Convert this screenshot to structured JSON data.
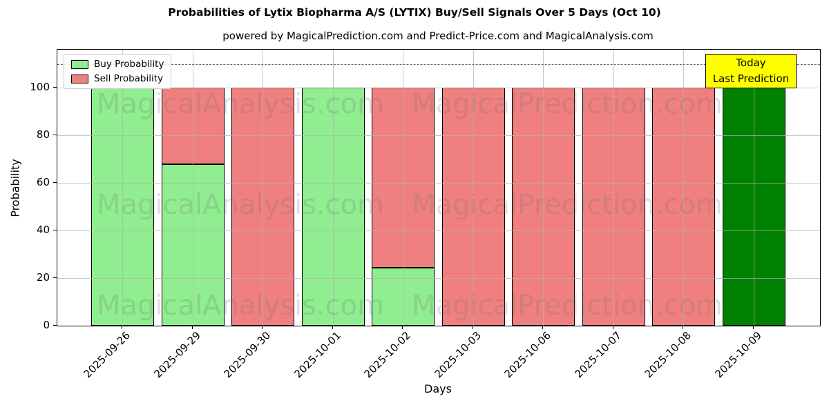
{
  "subtitle": "powered by MagicalPrediction.com and Predict-Price.com and MagicalAnalysis.com",
  "annotation": {
    "line1": "Today",
    "line2": "Last Prediction",
    "bg_color": "#FFFF00"
  },
  "watermarks": {
    "left": "MagicalAnalysis.com",
    "right": "MagicalPrediction.com",
    "rows": 3
  },
  "chart_data": {
    "type": "bar",
    "stacked": true,
    "title": "Probabilities of Lytix Biopharma A/S (LYTIX) Buy/Sell Signals Over 5 Days (Oct 10)",
    "xlabel": "Days",
    "ylabel": "Probability",
    "categories": [
      "2025-09-26",
      "2025-09-29",
      "2025-09-30",
      "2025-10-01",
      "2025-10-02",
      "2025-10-03",
      "2025-10-06",
      "2025-10-07",
      "2025-10-08",
      "2025-10-09"
    ],
    "series": [
      {
        "name": "Buy Probability",
        "color": "#90EE90",
        "values": [
          100,
          68,
          0,
          100,
          24.5,
          0,
          0,
          0,
          0,
          100
        ]
      },
      {
        "name": "Sell Probability",
        "color": "#F08080",
        "values": [
          0,
          32,
          100,
          0,
          75.5,
          100,
          100,
          100,
          100,
          0
        ]
      }
    ],
    "today": {
      "category": "2025-10-09",
      "index": 9,
      "color": "#008000"
    },
    "ylim": [
      0,
      116
    ],
    "yticks": [
      0,
      20,
      40,
      60,
      80,
      100
    ],
    "threshold_line": {
      "y": 110,
      "style": "dashed",
      "color": "#666666"
    },
    "grid": true,
    "legend_position": "upper left",
    "bar_edge_color": "#000000"
  }
}
